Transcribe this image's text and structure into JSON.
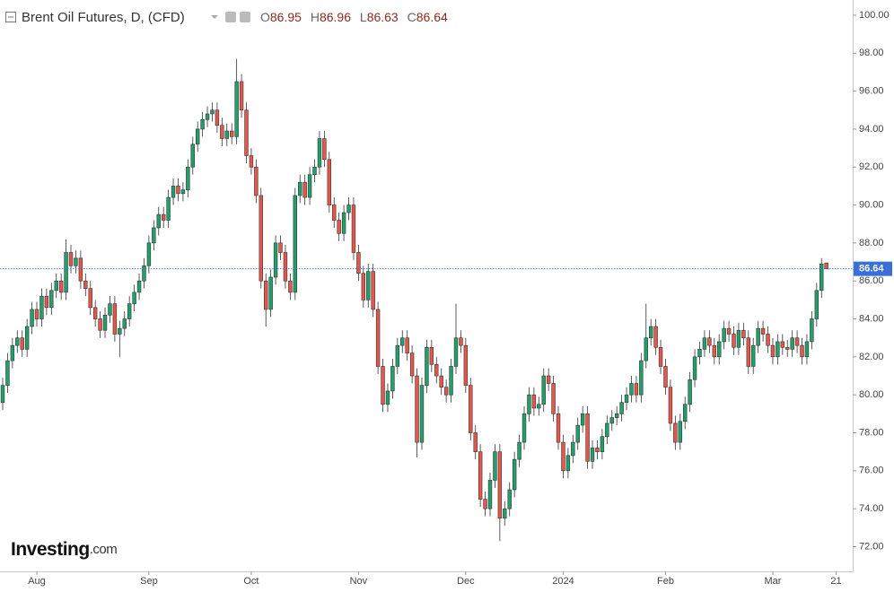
{
  "chart_data": {
    "type": "candlestick",
    "title": "Brent Oil Futures, D, (CFD)",
    "ohlc_letters": [
      "O",
      "H",
      "L",
      "C"
    ],
    "brand": "Investing",
    "brand_suffix": ".com",
    "up_color": "#22a06b",
    "down_color": "#e5574b",
    "price_line_color": "#3a6fd8",
    "grid": false,
    "ylim": [
      70.7,
      100.8
    ],
    "yticks": [
      {
        "value": 72,
        "label": "72.00"
      },
      {
        "value": 74,
        "label": "74.00"
      },
      {
        "value": 76,
        "label": "76.00"
      },
      {
        "value": 78,
        "label": "78.00"
      },
      {
        "value": 80,
        "label": "80.00"
      },
      {
        "value": 82,
        "label": "82.00"
      },
      {
        "value": 84,
        "label": "84.00"
      },
      {
        "value": 86,
        "label": "86.00"
      },
      {
        "value": 88,
        "label": "88.00"
      },
      {
        "value": 90,
        "label": "90.00"
      },
      {
        "value": 92,
        "label": "92.00"
      },
      {
        "value": 94,
        "label": "94.00"
      },
      {
        "value": 96,
        "label": "96.00"
      },
      {
        "value": 98,
        "label": "98.00"
      },
      {
        "value": 100,
        "label": "100.00"
      }
    ],
    "categories": [
      null,
      null,
      null,
      null,
      null,
      null,
      null,
      "Aug",
      null,
      null,
      null,
      null,
      null,
      null,
      null,
      null,
      null,
      null,
      null,
      null,
      null,
      null,
      null,
      null,
      null,
      null,
      null,
      null,
      null,
      null,
      "Sep",
      null,
      null,
      null,
      null,
      null,
      null,
      null,
      null,
      null,
      null,
      null,
      null,
      null,
      null,
      null,
      null,
      null,
      null,
      null,
      null,
      "Oct",
      null,
      null,
      null,
      null,
      null,
      null,
      null,
      null,
      null,
      null,
      null,
      null,
      null,
      null,
      null,
      null,
      null,
      null,
      null,
      null,
      null,
      "Nov",
      null,
      null,
      null,
      null,
      null,
      null,
      null,
      null,
      null,
      null,
      null,
      null,
      null,
      null,
      null,
      null,
      null,
      null,
      null,
      null,
      null,
      "Dec",
      null,
      null,
      null,
      null,
      null,
      null,
      null,
      null,
      null,
      null,
      null,
      null,
      null,
      null,
      null,
      null,
      null,
      null,
      null,
      "2024",
      null,
      null,
      null,
      null,
      null,
      null,
      null,
      null,
      null,
      null,
      null,
      null,
      null,
      null,
      null,
      null,
      null,
      null,
      null,
      null,
      "Feb",
      null,
      null,
      null,
      null,
      null,
      null,
      null,
      null,
      null,
      null,
      null,
      null,
      null,
      null,
      null,
      null,
      null,
      null,
      null,
      null,
      null,
      "Mar",
      null,
      null,
      null,
      null,
      null,
      null,
      null,
      null,
      null,
      null,
      null,
      null,
      "21"
    ],
    "open": [
      79.6,
      80.5,
      81.8,
      82.6,
      83.0,
      82.4,
      83.6,
      84.5,
      84.0,
      85.2,
      84.6,
      85.5,
      86.0,
      85.4,
      87.5,
      86.8,
      87.2,
      86.0,
      85.6,
      84.6,
      84.0,
      83.4,
      84.2,
      84.8,
      83.2,
      83.5,
      84.0,
      84.8,
      85.4,
      86.0,
      86.8,
      88.0,
      88.8,
      89.5,
      89.2,
      90.4,
      91.0,
      90.6,
      90.8,
      92.0,
      93.2,
      94.0,
      94.5,
      94.8,
      95.0,
      94.2,
      93.5,
      93.9,
      93.6,
      96.5,
      95.0,
      92.6,
      92.0,
      90.5,
      86.0,
      84.5,
      86.2,
      88.0,
      87.5,
      86.0,
      85.4,
      90.5,
      91.2,
      90.4,
      91.6,
      92.0,
      93.5,
      92.4,
      90.0,
      89.2,
      88.5,
      89.6,
      90.0,
      87.5,
      86.4,
      85.0,
      86.5,
      84.5,
      81.5,
      79.5,
      80.2,
      81.5,
      82.6,
      83.0,
      82.2,
      81.0,
      77.5,
      80.5,
      82.5,
      81.6,
      81.0,
      80.4,
      80.0,
      81.5,
      83.0,
      82.6,
      80.5,
      78.0,
      77.0,
      74.5,
      74.0,
      75.5,
      77.0,
      73.5,
      74.0,
      75.0,
      76.6,
      77.5,
      79.0,
      80.0,
      79.3,
      79.5,
      81.0,
      80.6,
      79.0,
      77.5,
      76.0,
      76.8,
      77.5,
      78.4,
      79.0,
      76.5,
      77.2,
      77.0,
      77.8,
      78.5,
      78.8,
      79.0,
      79.6,
      80.0,
      80.6,
      80.0,
      81.8,
      83.0,
      83.6,
      82.5,
      81.5,
      80.4,
      78.5,
      77.5,
      78.6,
      79.5,
      80.8,
      82.0,
      82.4,
      83.0,
      82.6,
      82.0,
      82.8,
      83.5,
      83.2,
      82.5,
      83.4,
      83.0,
      81.5,
      82.6,
      83.5,
      83.2,
      82.6,
      82.0,
      82.8,
      82.5,
      82.4,
      83.0,
      82.6,
      82.0,
      82.8,
      84.0,
      85.5,
      86.95,
      null,
      null
    ],
    "high": [
      80.9,
      82.2,
      83.0,
      83.4,
      83.4,
      84.0,
      84.9,
      84.9,
      85.6,
      85.6,
      85.9,
      86.4,
      86.4,
      88.2,
      87.9,
      87.6,
      87.6,
      86.4,
      86.0,
      85.0,
      84.4,
      84.6,
      85.2,
      85.2,
      83.9,
      84.4,
      85.2,
      85.8,
      86.4,
      87.2,
      88.4,
      89.2,
      89.9,
      89.9,
      90.8,
      91.4,
      91.4,
      91.2,
      92.4,
      93.6,
      94.4,
      94.9,
      95.2,
      95.4,
      95.4,
      94.6,
      94.3,
      94.3,
      97.7,
      96.9,
      95.4,
      93.0,
      92.4,
      90.9,
      86.4,
      86.6,
      88.4,
      88.4,
      87.9,
      86.4,
      90.9,
      91.6,
      91.6,
      92.0,
      92.4,
      93.9,
      93.9,
      92.8,
      90.4,
      89.6,
      90.0,
      90.4,
      90.4,
      87.9,
      86.8,
      86.9,
      86.9,
      84.9,
      81.9,
      80.6,
      81.9,
      83.0,
      83.4,
      83.4,
      82.6,
      81.4,
      80.9,
      82.9,
      82.9,
      82.0,
      81.4,
      80.8,
      81.9,
      84.8,
      83.4,
      83.0,
      80.9,
      78.4,
      77.4,
      74.9,
      75.9,
      77.4,
      77.4,
      74.4,
      75.4,
      77.0,
      77.9,
      79.4,
      80.4,
      80.4,
      79.9,
      81.4,
      81.4,
      81.0,
      79.4,
      77.9,
      77.2,
      77.9,
      78.8,
      79.4,
      79.4,
      77.6,
      77.6,
      78.2,
      78.9,
      79.2,
      79.4,
      80.0,
      80.4,
      81.0,
      81.0,
      82.2,
      84.8,
      84.0,
      84.0,
      82.9,
      81.9,
      80.8,
      78.9,
      79.0,
      79.9,
      81.2,
      82.4,
      82.8,
      83.4,
      83.4,
      83.0,
      83.2,
      83.9,
      83.9,
      83.6,
      83.8,
      83.8,
      83.4,
      83.0,
      83.9,
      83.9,
      83.6,
      83.0,
      83.2,
      83.2,
      82.9,
      83.4,
      83.4,
      83.0,
      83.2,
      84.4,
      85.9,
      87.2,
      86.96,
      null,
      null
    ],
    "low": [
      79.2,
      80.1,
      81.4,
      82.2,
      82.0,
      82.0,
      83.2,
      83.6,
      83.6,
      84.2,
      84.2,
      85.1,
      85.0,
      85.0,
      86.4,
      86.4,
      85.6,
      85.2,
      84.2,
      83.6,
      83.0,
      83.0,
      83.8,
      82.8,
      82.0,
      83.1,
      83.6,
      84.4,
      85.0,
      85.6,
      86.4,
      87.6,
      88.4,
      88.8,
      88.8,
      90.0,
      90.2,
      90.2,
      90.4,
      91.6,
      92.8,
      93.6,
      94.1,
      94.4,
      93.8,
      93.1,
      93.1,
      93.2,
      93.2,
      94.6,
      92.2,
      91.6,
      90.1,
      85.6,
      83.6,
      84.1,
      85.8,
      87.1,
      85.6,
      85.0,
      85.0,
      90.1,
      90.0,
      90.0,
      91.2,
      91.6,
      92.0,
      89.6,
      88.8,
      88.1,
      88.1,
      89.2,
      87.1,
      86.0,
      84.6,
      84.6,
      84.1,
      81.1,
      79.1,
      79.1,
      79.8,
      81.1,
      82.2,
      81.8,
      80.6,
      76.7,
      77.1,
      80.1,
      81.2,
      80.6,
      80.0,
      79.6,
      79.6,
      81.1,
      82.2,
      80.1,
      77.6,
      76.6,
      74.1,
      73.6,
      73.6,
      75.1,
      72.3,
      73.1,
      73.6,
      74.6,
      76.2,
      77.1,
      78.6,
      78.9,
      78.9,
      79.1,
      80.2,
      78.6,
      77.1,
      75.6,
      75.6,
      76.4,
      77.1,
      78.0,
      76.1,
      76.1,
      76.6,
      76.6,
      77.4,
      78.1,
      78.4,
      78.6,
      79.2,
      79.6,
      79.6,
      79.6,
      81.4,
      82.6,
      82.1,
      81.1,
      80.0,
      78.1,
      77.1,
      77.1,
      78.2,
      79.1,
      80.4,
      81.6,
      82.0,
      82.2,
      81.6,
      81.6,
      82.4,
      82.8,
      82.1,
      82.1,
      82.6,
      81.1,
      81.1,
      82.2,
      82.8,
      82.2,
      81.6,
      81.6,
      82.1,
      82.0,
      82.0,
      82.2,
      81.6,
      81.6,
      82.4,
      83.6,
      85.1,
      86.63,
      null,
      null
    ],
    "close": [
      80.5,
      81.8,
      82.6,
      83.0,
      82.4,
      83.6,
      84.5,
      84.0,
      85.2,
      84.6,
      85.5,
      86.0,
      85.4,
      87.5,
      86.8,
      87.2,
      86.0,
      85.6,
      84.6,
      84.0,
      83.4,
      84.2,
      84.8,
      83.2,
      83.5,
      84.0,
      84.8,
      85.4,
      86.0,
      86.8,
      88.0,
      88.8,
      89.5,
      89.2,
      90.4,
      91.0,
      90.6,
      90.8,
      92.0,
      93.2,
      94.0,
      94.5,
      94.8,
      95.0,
      94.2,
      93.5,
      93.9,
      93.6,
      96.5,
      95.0,
      92.6,
      92.0,
      90.5,
      86.0,
      84.5,
      86.2,
      88.0,
      87.5,
      86.0,
      85.4,
      90.5,
      91.2,
      90.4,
      91.6,
      92.0,
      93.5,
      92.4,
      90.0,
      89.2,
      88.5,
      89.6,
      90.0,
      87.5,
      86.4,
      85.0,
      86.5,
      84.5,
      81.5,
      79.5,
      80.2,
      81.5,
      82.6,
      83.0,
      82.2,
      81.0,
      77.5,
      80.5,
      82.5,
      81.6,
      81.0,
      80.4,
      80.0,
      81.5,
      83.0,
      82.6,
      80.5,
      78.0,
      77.0,
      74.5,
      74.0,
      75.5,
      77.0,
      73.5,
      74.0,
      75.0,
      76.6,
      77.5,
      79.0,
      80.0,
      79.3,
      79.5,
      81.0,
      80.6,
      79.0,
      77.5,
      76.0,
      76.8,
      77.5,
      78.4,
      79.0,
      76.5,
      77.2,
      77.0,
      77.8,
      78.5,
      78.8,
      79.0,
      79.6,
      80.0,
      80.6,
      80.0,
      81.8,
      83.0,
      83.6,
      82.5,
      81.5,
      80.4,
      78.5,
      77.5,
      78.6,
      79.5,
      80.8,
      82.0,
      82.4,
      83.0,
      82.6,
      82.0,
      82.8,
      83.5,
      83.2,
      82.5,
      83.4,
      83.0,
      81.5,
      82.6,
      83.5,
      83.2,
      82.6,
      82.0,
      82.8,
      82.5,
      82.4,
      83.0,
      82.6,
      82.0,
      82.8,
      84.0,
      85.5,
      86.9,
      86.64,
      null,
      null
    ]
  }
}
